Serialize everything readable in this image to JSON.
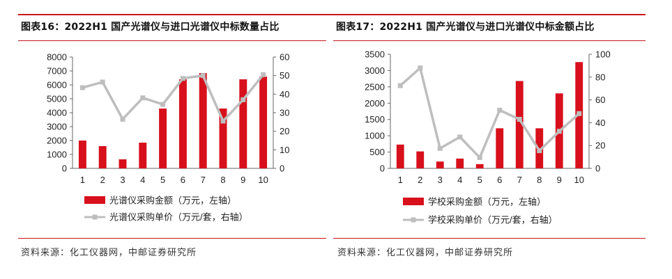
{
  "colors": {
    "accent": "#c8151b",
    "bar": "#d7101c",
    "line": "#bebebe",
    "text": "#222222"
  },
  "left_panel": {
    "title": "图表16：2022H1 国产光谱仪与进口光谱仪中标数量占比",
    "source": "资料来源：化工仪器网，中邮证券研究所"
  },
  "right_panel": {
    "title": "图表17：2022H1 国产光谱仪与进口光谱仪中标金额占比",
    "source": "资料来源：化工仪器网，中邮证券研究所"
  },
  "chart_data": [
    {
      "type": "bar+line",
      "title": "",
      "categories": [
        "1",
        "2",
        "3",
        "4",
        "5",
        "6",
        "7",
        "8",
        "9",
        "10"
      ],
      "y_left": {
        "ticks": [
          "0",
          "1000",
          "2000",
          "3000",
          "4000",
          "5000",
          "6000",
          "7000",
          "8000"
        ],
        "lim": [
          0,
          8000
        ]
      },
      "y_right": {
        "ticks": [
          "0",
          "10",
          "20",
          "30",
          "40",
          "50",
          "60"
        ],
        "lim": [
          0,
          60
        ]
      },
      "series": [
        {
          "name": "光谱仪采购金额（万元，左轴）",
          "kind": "bar",
          "axis": "left",
          "values": [
            2000,
            1600,
            650,
            1850,
            4300,
            6400,
            6850,
            4300,
            6400,
            6600
          ]
        },
        {
          "name": "光谱仪采购单价（万元/套，右轴）",
          "kind": "line",
          "axis": "right",
          "values": [
            43.5,
            46.5,
            26.5,
            38,
            34.5,
            48.5,
            50,
            25.5,
            37,
            50.5
          ]
        }
      ],
      "grid": false,
      "legend": "bottom"
    },
    {
      "type": "bar+line",
      "title": "",
      "categories": [
        "1",
        "2",
        "3",
        "4",
        "5",
        "6",
        "7",
        "8",
        "9",
        "10"
      ],
      "y_left": {
        "ticks": [
          "0",
          "500",
          "1000",
          "1500",
          "2000",
          "2500",
          "3000",
          "3500"
        ],
        "lim": [
          0,
          3500
        ]
      },
      "y_right": {
        "ticks": [
          "0",
          "20",
          "40",
          "60",
          "80",
          "100"
        ],
        "lim": [
          0,
          100
        ]
      },
      "series": [
        {
          "name": "学校采购金额（万元，左轴）",
          "kind": "bar",
          "axis": "left",
          "values": [
            730,
            520,
            210,
            300,
            130,
            1230,
            2680,
            1230,
            2300,
            3260
          ]
        },
        {
          "name": "学校采购单价（万元/套，右轴）",
          "kind": "line",
          "axis": "right",
          "values": [
            72.5,
            88,
            17.5,
            27.5,
            9.5,
            51,
            43,
            15.5,
            32.5,
            48
          ]
        }
      ],
      "grid": false,
      "legend": "bottom"
    }
  ]
}
